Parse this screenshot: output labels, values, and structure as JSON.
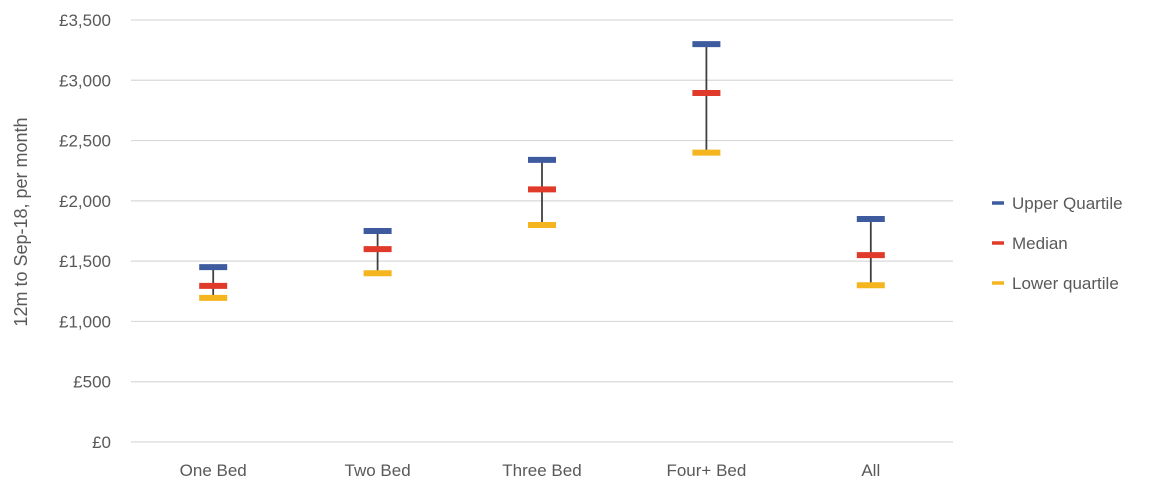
{
  "chart_data": {
    "type": "scatter",
    "subtype": "high-low-close",
    "title": "",
    "xlabel": "",
    "ylabel": "12m to Sep-18, per month",
    "ylim": [
      0,
      3500
    ],
    "yticks": [
      0,
      500,
      1000,
      1500,
      2000,
      2500,
      3000,
      3500
    ],
    "ytick_labels": [
      "£0",
      "£500",
      "£1,000",
      "£1,500",
      "£2,000",
      "£2,500",
      "£3,000",
      "£3,500"
    ],
    "categories": [
      "One Bed",
      "Two Bed",
      "Three Bed",
      "Four+ Bed",
      "All"
    ],
    "series": [
      {
        "name": "Upper Quartile",
        "color": "#3e5ba0",
        "values": [
          1450,
          1750,
          2340,
          3300,
          1850
        ]
      },
      {
        "name": "Median",
        "color": "#e03a2a",
        "values": [
          1295,
          1600,
          2095,
          2895,
          1550
        ]
      },
      {
        "name": "Lower quartile",
        "color": "#f5b51e",
        "values": [
          1195,
          1400,
          1800,
          2400,
          1300
        ]
      }
    ],
    "grid": true,
    "legend_position": "right"
  }
}
